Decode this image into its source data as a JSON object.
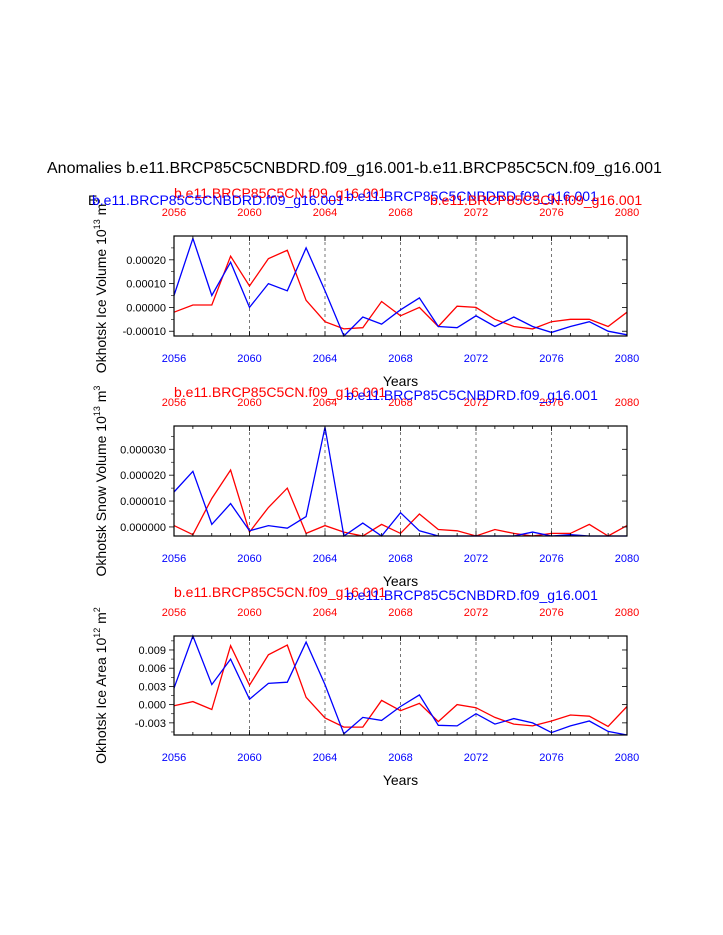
{
  "title": "Anomalies b.e11.BRCP85C5CNBDRD.f09_g16.001-b.e11.BRCP85C5CN.f09_g16.001",
  "colors": {
    "series_red": "#ff0000",
    "series_blue": "#0000ff",
    "axis": "#000000",
    "grid": "#555555"
  },
  "chart_data": [
    {
      "type": "line",
      "ylabel": "Okhotsk Ice Volume 10",
      "ylabel_exp": "13",
      "ylabel_unit": " m",
      "ylabel_unit_exp": "3",
      "xlabel": "Years",
      "legend_red": "b.e11.BRCP85C5CN.f09_g16.001",
      "legend_blue": "b.e11.BRCP85C5CNBDRD.f09_g16.001",
      "legend_blue_left": "b.e11.BRCP85C5CNBDRD.f09_g16.001",
      "legend_red_right": "b.e11.BRCP85C5CN.f09_g16.001",
      "legend_left_prefix": "E",
      "xlim": [
        2056,
        2080
      ],
      "ylim": [
        -0.00012,
        0.0003
      ],
      "yticks": [
        -0.0001,
        0.0,
        0.0001,
        0.0002
      ],
      "yticklabels": [
        "-0.00010",
        "0.00000",
        "0.00010",
        "0.00020"
      ],
      "xticks": [
        2056,
        2060,
        2064,
        2068,
        2072,
        2076,
        2080
      ],
      "vgrid": [
        2060,
        2064,
        2068,
        2072,
        2076
      ],
      "x": [
        2056,
        2057,
        2058,
        2059,
        2060,
        2061,
        2062,
        2063,
        2064,
        2065,
        2066,
        2067,
        2068,
        2069,
        2070,
        2071,
        2072,
        2073,
        2074,
        2075,
        2076,
        2077,
        2078,
        2079,
        2080
      ],
      "series": [
        {
          "name": "b.e11.BRCP85C5CN.f09_g16.001",
          "color": "#ff0000",
          "values": [
            -2e-05,
            1e-05,
            1e-05,
            0.000215,
            9e-05,
            0.000205,
            0.00024,
            3e-05,
            -6e-05,
            -9e-05,
            -8.5e-05,
            2.5e-05,
            -3.5e-05,
            0.0,
            -8e-05,
            5e-06,
            0.0,
            -5e-05,
            -8e-05,
            -9e-05,
            -6e-05,
            -5e-05,
            -5e-05,
            -8e-05,
            -2e-05
          ]
        },
        {
          "name": "b.e11.BRCP85C5CNBDRD.f09_g16.001",
          "color": "#0000ff",
          "values": [
            5e-05,
            0.00029,
            5e-05,
            0.00019,
            0.0,
            0.0001,
            7e-05,
            0.00025,
            7e-05,
            -0.00012,
            -4e-05,
            -7e-05,
            -1e-05,
            4e-05,
            -8e-05,
            -8.5e-05,
            -3.5e-05,
            -8e-05,
            -4e-05,
            -8e-05,
            -0.000105,
            -8e-05,
            -6e-05,
            -0.0001,
            -0.000115
          ]
        }
      ]
    },
    {
      "type": "line",
      "ylabel": "Okhotsk Snow Volume 10",
      "ylabel_exp": "13",
      "ylabel_unit": " m",
      "ylabel_unit_exp": "3",
      "xlabel": "Years",
      "legend_red": "b.e11.BRCP85C5CN.f09_g16.001",
      "legend_blue": "b.e11.BRCP85C5CNBDRD.f09_g16.001",
      "xlim": [
        2056,
        2080
      ],
      "ylim": [
        -3.5e-06,
        3.9e-05
      ],
      "yticks": [
        0.0,
        1e-05,
        2e-05,
        3e-05
      ],
      "yticklabels": [
        "0.000000",
        "0.000010",
        "0.000020",
        "0.000030"
      ],
      "xticks": [
        2056,
        2060,
        2064,
        2068,
        2072,
        2076,
        2080
      ],
      "vgrid": [
        2060,
        2064,
        2068,
        2072,
        2076
      ],
      "x": [
        2056,
        2057,
        2058,
        2059,
        2060,
        2061,
        2062,
        2063,
        2064,
        2065,
        2066,
        2067,
        2068,
        2069,
        2070,
        2071,
        2072,
        2073,
        2074,
        2075,
        2076,
        2077,
        2078,
        2079,
        2080
      ],
      "series": [
        {
          "name": "b.e11.BRCP85C5CN.f09_g16.001",
          "color": "#ff0000",
          "values": [
            5e-07,
            -3e-06,
            1.1e-05,
            2.2e-05,
            -2e-06,
            7.5e-06,
            1.5e-05,
            -2.5e-06,
            5e-07,
            -2e-06,
            -3.5e-06,
            1e-06,
            -2.5e-06,
            5e-06,
            -1e-06,
            -1.5e-06,
            -3.5e-06,
            -1e-06,
            -2.5e-06,
            -3.5e-06,
            -2.5e-06,
            -2.5e-06,
            1e-06,
            -3.5e-06,
            5e-07
          ]
        },
        {
          "name": "b.e11.BRCP85C5CNBDRD.f09_g16.001",
          "color": "#0000ff",
          "values": [
            1.35e-05,
            2.15e-05,
            1e-06,
            9e-06,
            -1.5e-06,
            5e-07,
            -5e-07,
            4e-06,
            3.85e-05,
            -3.5e-06,
            1.5e-06,
            -3.5e-06,
            5.5e-06,
            -1.5e-06,
            -3.5e-06,
            -3.5e-06,
            -3.5e-06,
            -3.5e-06,
            -3.5e-06,
            -2e-06,
            -3.5e-06,
            -3e-06,
            -3.5e-06,
            -3.5e-06,
            -3.5e-06
          ]
        }
      ]
    },
    {
      "type": "line",
      "ylabel": "Okhotsk Ice Area 10",
      "ylabel_exp": "12",
      "ylabel_unit": " m",
      "ylabel_unit_exp": "2",
      "xlabel": "Years",
      "legend_red": "b.e11.BRCP85C5CN.f09_g16.001",
      "legend_blue": "b.e11.BRCP85C5CNBDRD.f09_g16.001",
      "xlim": [
        2056,
        2080
      ],
      "ylim": [
        -0.005,
        0.0113
      ],
      "yticks": [
        -0.003,
        0.0,
        0.003,
        0.006,
        0.009
      ],
      "yticklabels": [
        "-0.003",
        "0.000",
        "0.003",
        "0.006",
        "0.009"
      ],
      "xticks": [
        2056,
        2060,
        2064,
        2068,
        2072,
        2076,
        2080
      ],
      "vgrid": [
        2060,
        2064,
        2068,
        2072,
        2076
      ],
      "x": [
        2056,
        2057,
        2058,
        2059,
        2060,
        2061,
        2062,
        2063,
        2064,
        2065,
        2066,
        2067,
        2068,
        2069,
        2070,
        2071,
        2072,
        2073,
        2074,
        2075,
        2076,
        2077,
        2078,
        2079,
        2080
      ],
      "series": [
        {
          "name": "b.e11.BRCP85C5CN.f09_g16.001",
          "color": "#ff0000",
          "values": [
            -0.0002,
            0.0005,
            -0.0008,
            0.0097,
            0.0032,
            0.0082,
            0.0098,
            0.0012,
            -0.0022,
            -0.0037,
            -0.0037,
            0.0007,
            -0.001,
            0.0002,
            -0.0028,
            0.0,
            -0.0005,
            -0.0021,
            -0.0032,
            -0.0035,
            -0.0027,
            -0.0017,
            -0.0019,
            -0.0036,
            -0.0003
          ]
        },
        {
          "name": "b.e11.BRCP85C5CNBDRD.f09_g16.001",
          "color": "#0000ff",
          "values": [
            0.0027,
            0.0113,
            0.0033,
            0.0075,
            0.0009,
            0.0035,
            0.0037,
            0.0103,
            0.0033,
            -0.0048,
            -0.0021,
            -0.0026,
            -0.0003,
            0.0016,
            -0.0034,
            -0.0035,
            -0.0015,
            -0.0032,
            -0.0023,
            -0.003,
            -0.0046,
            -0.0035,
            -0.0027,
            -0.0044,
            -0.005
          ]
        }
      ]
    }
  ]
}
